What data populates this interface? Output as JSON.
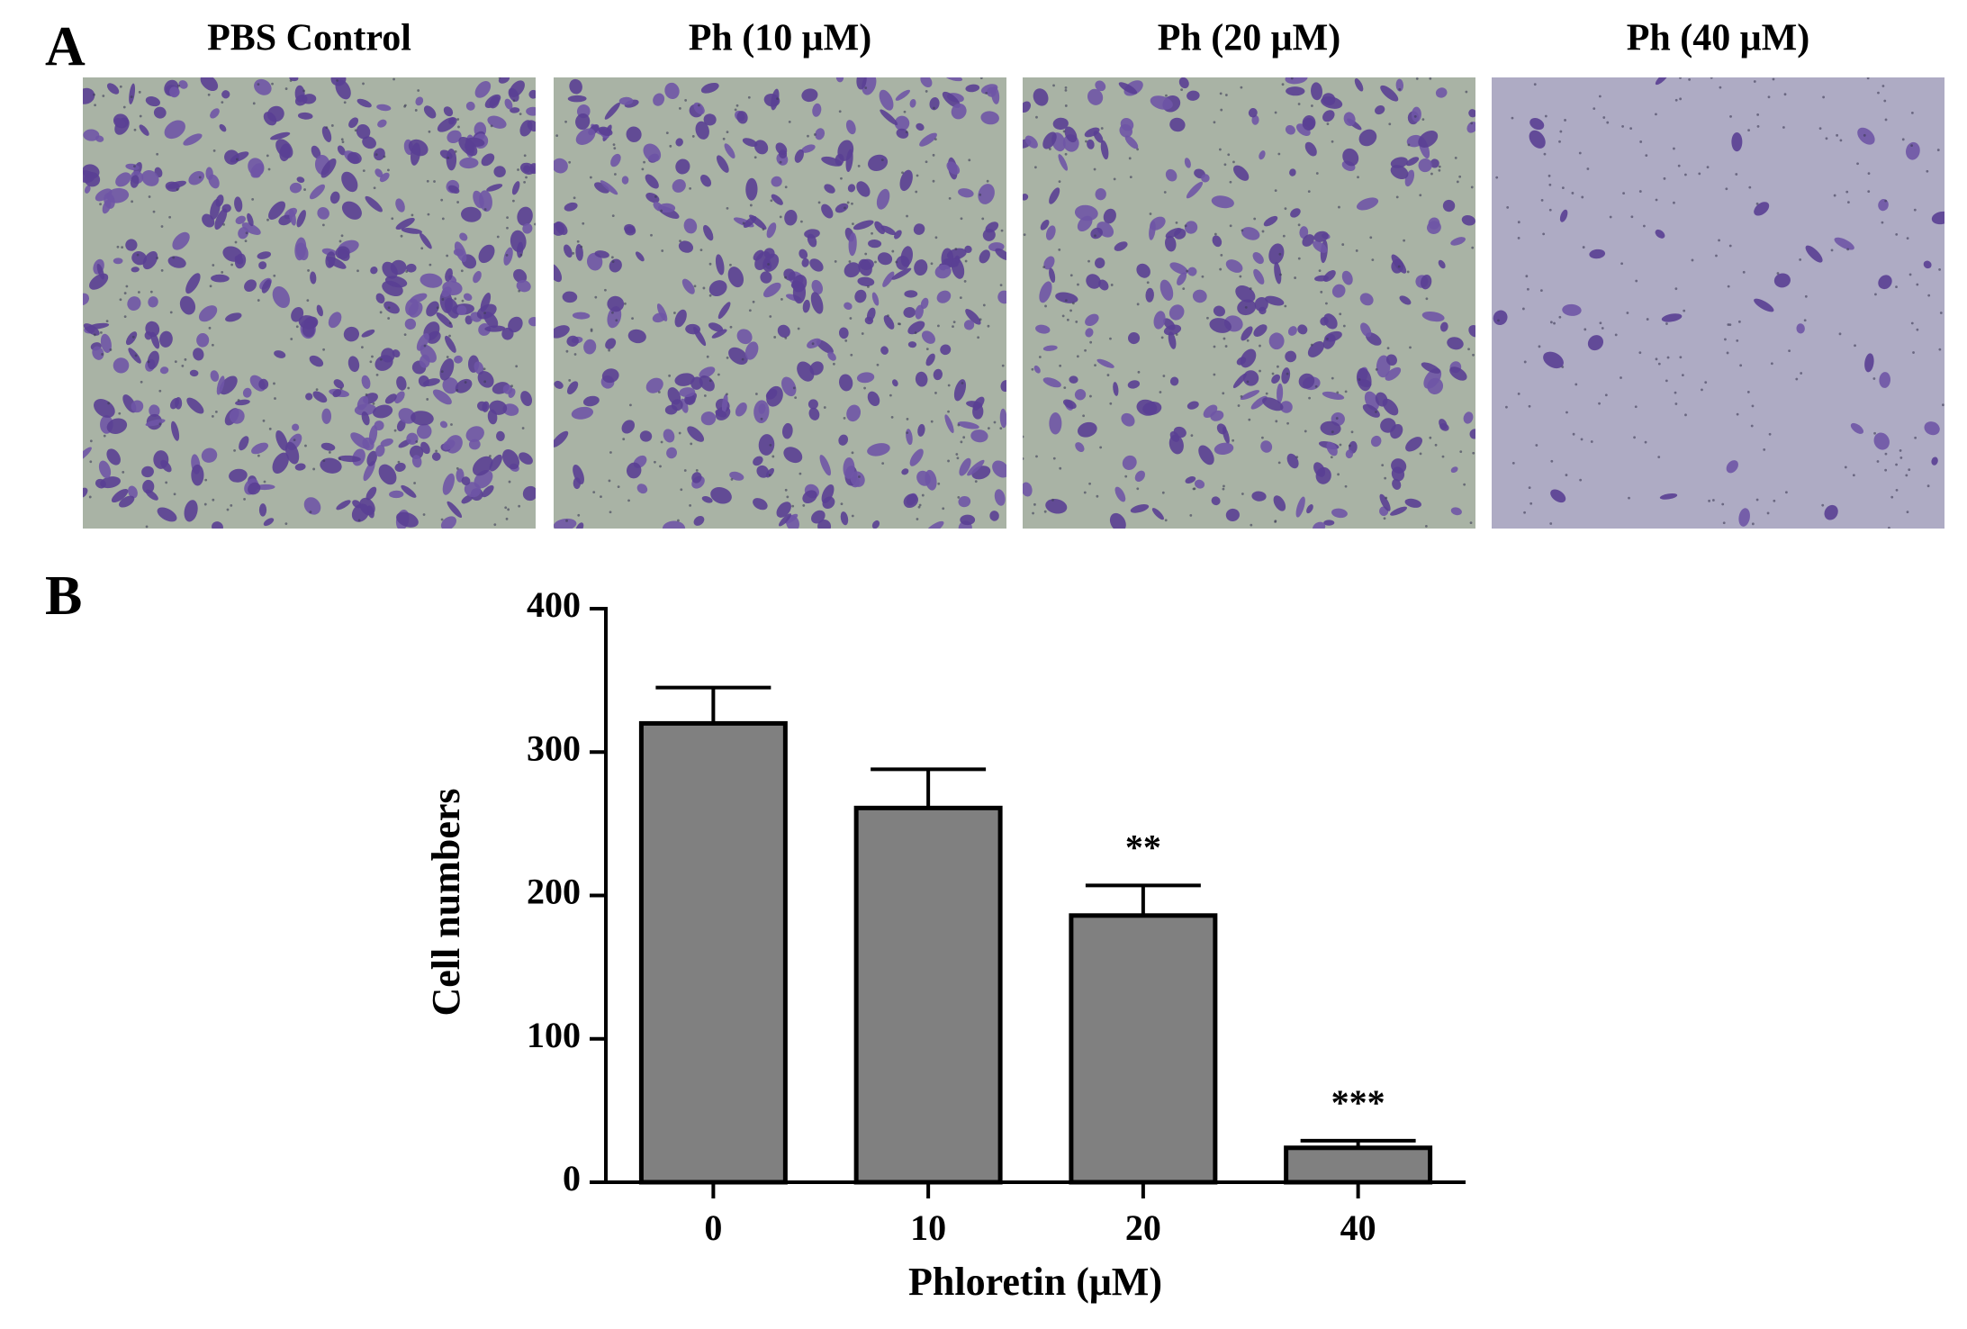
{
  "panel_labels": {
    "a": "A",
    "b": "B"
  },
  "panel_a": {
    "images": [
      {
        "title": "PBS Control"
      },
      {
        "title": "Ph (10 μM)"
      },
      {
        "title": "Ph (20 μM)"
      },
      {
        "title": "Ph (40 μM)"
      }
    ]
  },
  "chart_data": {
    "type": "bar",
    "x_label": "Phloretin (μM)",
    "y_label": "Cell numbers",
    "categories": [
      "0",
      "10",
      "20",
      "40"
    ],
    "values": [
      320,
      261,
      186,
      24
    ],
    "errors": [
      25,
      27,
      21,
      5
    ],
    "annotations": [
      null,
      null,
      "**",
      "***"
    ],
    "color": "#808080",
    "ylim": [
      0,
      400
    ],
    "yticks": [
      0,
      100,
      200,
      300,
      400
    ]
  }
}
